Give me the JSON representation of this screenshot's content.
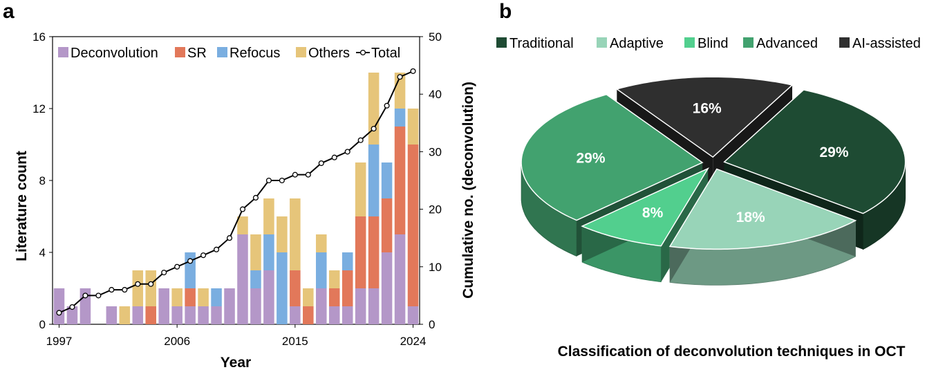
{
  "panels": {
    "a_label": "a",
    "b_label": "b"
  },
  "chart_data": [
    {
      "type": "bar",
      "stacked": true,
      "xlabel": "Year",
      "ylabel": "Literature count",
      "y2label": "Cumulative no. (deconvolution)",
      "ylim": [
        0,
        16
      ],
      "y2lim": [
        0,
        50
      ],
      "yticks": [
        "0",
        "4",
        "8",
        "12",
        "16"
      ],
      "y2ticks": [
        "0",
        "10",
        "20",
        "30",
        "40",
        "50"
      ],
      "xtick_labels": [
        "1997",
        "2006",
        "2015",
        "2024"
      ],
      "legend_position": "top",
      "categories": [
        1997,
        1998,
        1999,
        2000,
        2001,
        2002,
        2003,
        2004,
        2005,
        2006,
        2007,
        2008,
        2009,
        2010,
        2011,
        2012,
        2013,
        2014,
        2015,
        2016,
        2017,
        2018,
        2019,
        2020,
        2021,
        2022,
        2023,
        2024
      ],
      "series": [
        {
          "name": "Deconvolution",
          "color": "#b497c8",
          "values": [
            2,
            1,
            2,
            0,
            1,
            0,
            1,
            0,
            2,
            1,
            1,
            1,
            1,
            2,
            5,
            2,
            3,
            0,
            1,
            0,
            2,
            1,
            1,
            2,
            2,
            4,
            5,
            1
          ]
        },
        {
          "name": "SR",
          "color": "#e2785a",
          "values": [
            0,
            0,
            0,
            0,
            0,
            0,
            0,
            1,
            0,
            0,
            1,
            0,
            0,
            0,
            0,
            0,
            0,
            0,
            2,
            1,
            0,
            1,
            2,
            4,
            4,
            3,
            6,
            9
          ]
        },
        {
          "name": "Refocus",
          "color": "#7aaee0",
          "values": [
            0,
            0,
            0,
            0,
            0,
            0,
            0,
            0,
            0,
            0,
            2,
            0,
            1,
            0,
            0,
            1,
            2,
            4,
            0,
            0,
            2,
            0,
            1,
            0,
            4,
            2,
            1,
            0
          ]
        },
        {
          "name": "Others",
          "color": "#e6c57a",
          "values": [
            0,
            0,
            0,
            0,
            0,
            1,
            2,
            2,
            0,
            1,
            0,
            1,
            0,
            0,
            1,
            2,
            2,
            2,
            4,
            1,
            1,
            1,
            0,
            3,
            4,
            0,
            2,
            2
          ]
        }
      ],
      "line_series": {
        "name": "Total",
        "axis": "y2",
        "values": [
          2,
          3,
          5,
          5,
          6,
          6,
          7,
          7,
          9,
          10,
          11,
          12,
          13,
          15,
          20,
          22,
          25,
          25,
          26,
          26,
          28,
          29,
          30,
          32,
          34,
          38,
          43,
          44
        ]
      }
    },
    {
      "type": "pie",
      "style": "3d-exploded",
      "title": "Classification of deconvolution techniques in OCT",
      "legend_position": "top",
      "slices": [
        {
          "name": "Traditional",
          "value": 29,
          "label": "29%",
          "color": "#1e4b33"
        },
        {
          "name": "Adaptive",
          "value": 18,
          "label": "18%",
          "color": "#98d4b8"
        },
        {
          "name": "Blind",
          "value": 8,
          "label": "8%",
          "color": "#52cf8e"
        },
        {
          "name": "Advanced",
          "value": 29,
          "label": "29%",
          "color": "#42a26f"
        },
        {
          "name": "AI-assisted",
          "value": 16,
          "label": "16%",
          "color": "#2f2f2f"
        }
      ]
    }
  ]
}
